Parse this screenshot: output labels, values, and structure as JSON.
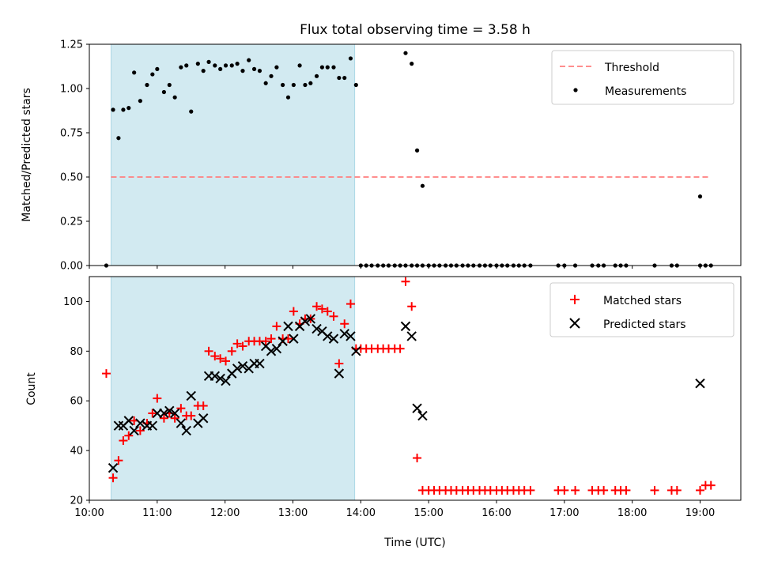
{
  "title": "Flux total observing time = 3.58 h",
  "colors": {
    "threshold": "#ff7f7f",
    "measurement": "#000000",
    "matched": "#ff0000",
    "predicted": "#000000",
    "shade": "#add8e6"
  },
  "chart_data": [
    {
      "type": "scatter",
      "ylabel": "Matched/Predicted stars",
      "xlim": [
        10.0,
        19.6
      ],
      "ylim": [
        0,
        1.25
      ],
      "yticks": [
        "0.00",
        "0.25",
        "0.50",
        "0.75",
        "1.00",
        "1.25"
      ],
      "shaded_region": [
        10.32,
        13.91
      ],
      "legend": {
        "placement": "upper-right",
        "threshold": "Threshold",
        "measurements": "Measurements"
      },
      "threshold": {
        "name": "Threshold",
        "y": 0.5,
        "x_range": [
          10.32,
          19.15
        ]
      },
      "series": [
        {
          "name": "Measurements",
          "x": [
            10.25,
            10.35,
            10.43,
            10.5,
            10.58,
            10.66,
            10.75,
            10.85,
            10.93,
            11.0,
            11.1,
            11.18,
            11.26,
            11.35,
            11.43,
            11.5,
            11.6,
            11.68,
            11.76,
            11.85,
            11.93,
            12.01,
            12.1,
            12.18,
            12.26,
            12.35,
            12.43,
            12.51,
            12.6,
            12.68,
            12.76,
            12.85,
            12.93,
            13.01,
            13.1,
            13.18,
            13.26,
            13.35,
            13.43,
            13.51,
            13.6,
            13.68,
            13.76,
            13.85,
            14.0,
            14.08,
            14.16,
            14.25,
            14.33,
            14.41,
            14.5,
            14.58,
            14.66,
            14.75,
            14.83,
            14.91,
            15.0,
            15.08,
            15.16,
            15.25,
            15.33,
            15.41,
            15.5,
            15.58,
            15.66,
            15.75,
            15.83,
            15.91,
            16.0,
            16.08,
            16.16,
            16.25,
            16.33,
            16.41,
            16.5,
            16.91,
            17.0,
            17.16,
            17.41,
            17.5,
            17.58,
            17.75,
            17.83,
            17.91,
            18.33,
            18.58,
            18.66,
            19.0,
            19.08,
            19.16,
            14.66,
            14.75,
            14.83,
            14.91,
            13.93,
            19.0
          ],
          "y": [
            0,
            0.88,
            0.72,
            0.88,
            0.89,
            1.09,
            0.93,
            1.02,
            1.08,
            1.11,
            0.98,
            1.02,
            0.95,
            1.12,
            1.13,
            0.87,
            1.14,
            1.1,
            1.15,
            1.13,
            1.11,
            1.13,
            1.13,
            1.14,
            1.1,
            1.16,
            1.11,
            1.1,
            1.03,
            1.07,
            1.12,
            1.02,
            0.95,
            1.02,
            1.13,
            1.02,
            1.03,
            1.07,
            1.12,
            1.12,
            1.12,
            1.06,
            1.06,
            1.17,
            0,
            0,
            0,
            0,
            0,
            0,
            0,
            0,
            0,
            0,
            0,
            0,
            0,
            0,
            0,
            0,
            0,
            0,
            0,
            0,
            0,
            0,
            0,
            0,
            0,
            0,
            0,
            0,
            0,
            0,
            0,
            0,
            0,
            0,
            0,
            0,
            0,
            0,
            0,
            0,
            0,
            0,
            0,
            0,
            0,
            0,
            1.2,
            1.14,
            0.65,
            0.45,
            1.02,
            0.39
          ]
        }
      ]
    },
    {
      "type": "scatter",
      "xlabel": "Time (UTC)",
      "ylabel": "Count",
      "xlim": [
        10.0,
        19.6
      ],
      "ylim": [
        20,
        110
      ],
      "yticks": [
        "20",
        "40",
        "60",
        "80",
        "100"
      ],
      "xticks": [
        "10:00",
        "11:00",
        "12:00",
        "13:00",
        "14:00",
        "15:00",
        "16:00",
        "17:00",
        "18:00",
        "19:00"
      ],
      "shaded_region": [
        10.32,
        13.91
      ],
      "legend": {
        "placement": "upper-right",
        "matched": "Matched stars",
        "predicted": "Predicted stars"
      },
      "series": [
        {
          "name": "Matched stars",
          "marker": "plus",
          "x": [
            10.25,
            10.35,
            10.43,
            10.5,
            10.58,
            10.66,
            10.75,
            10.85,
            10.93,
            11.0,
            11.1,
            11.18,
            11.26,
            11.35,
            11.43,
            11.5,
            11.6,
            11.68,
            11.76,
            11.85,
            11.93,
            12.01,
            12.1,
            12.18,
            12.26,
            12.35,
            12.43,
            12.51,
            12.6,
            12.68,
            12.76,
            12.85,
            12.93,
            13.01,
            13.1,
            13.18,
            13.26,
            13.35,
            13.43,
            13.51,
            13.6,
            13.68,
            13.76,
            13.85,
            13.93,
            14.0,
            14.08,
            14.16,
            14.25,
            14.33,
            14.41,
            14.5,
            14.58,
            14.66,
            14.75,
            14.83,
            14.91,
            15.0,
            15.08,
            15.16,
            15.25,
            15.33,
            15.41,
            15.5,
            15.58,
            15.66,
            15.75,
            15.83,
            15.91,
            16.0,
            16.08,
            16.16,
            16.25,
            16.33,
            16.41,
            16.5,
            16.91,
            17.0,
            17.16,
            17.41,
            17.5,
            17.58,
            17.75,
            17.83,
            17.91,
            18.33,
            18.58,
            18.66,
            19.0,
            19.08,
            19.16
          ],
          "y": [
            71,
            29,
            36,
            44,
            46,
            52,
            48,
            51,
            55,
            61,
            53,
            55,
            53,
            57,
            54,
            54,
            58,
            58,
            80,
            78,
            77,
            76,
            80,
            83,
            82,
            84,
            84,
            84,
            84,
            85,
            90,
            85,
            85,
            96,
            91,
            93,
            93,
            98,
            97,
            96,
            94,
            75,
            91,
            99,
            81,
            81,
            81,
            81,
            81,
            81,
            81,
            81,
            81,
            108,
            98,
            37,
            24,
            24,
            24,
            24,
            24,
            24,
            24,
            24,
            24,
            24,
            24,
            24,
            24,
            24,
            24,
            24,
            24,
            24,
            24,
            24,
            24,
            24,
            24,
            24,
            24,
            24,
            24,
            24,
            24,
            24,
            24,
            24,
            24,
            26,
            26
          ]
        },
        {
          "name": "Predicted stars",
          "marker": "x",
          "x": [
            10.35,
            10.43,
            10.5,
            10.58,
            10.66,
            10.75,
            10.85,
            10.93,
            11.0,
            11.1,
            11.18,
            11.26,
            11.35,
            11.43,
            11.5,
            11.6,
            11.68,
            11.76,
            11.85,
            11.93,
            12.01,
            12.1,
            12.18,
            12.26,
            12.35,
            12.43,
            12.51,
            12.6,
            12.68,
            12.76,
            12.85,
            12.93,
            13.01,
            13.1,
            13.18,
            13.26,
            13.35,
            13.43,
            13.51,
            13.6,
            13.68,
            13.76,
            13.85,
            13.93,
            14.66,
            14.75,
            14.83,
            14.91,
            19.0
          ],
          "y": [
            33,
            50,
            50,
            52,
            48,
            51,
            50,
            50,
            55,
            55,
            56,
            55,
            51,
            48,
            62,
            51,
            53,
            70,
            70,
            69,
            68,
            71,
            73,
            74,
            73,
            75,
            75,
            82,
            80,
            81,
            84,
            90,
            85,
            90,
            92,
            93,
            89,
            88,
            86,
            85,
            71,
            87,
            86,
            80,
            90,
            86,
            57,
            54,
            67
          ]
        }
      ]
    }
  ]
}
